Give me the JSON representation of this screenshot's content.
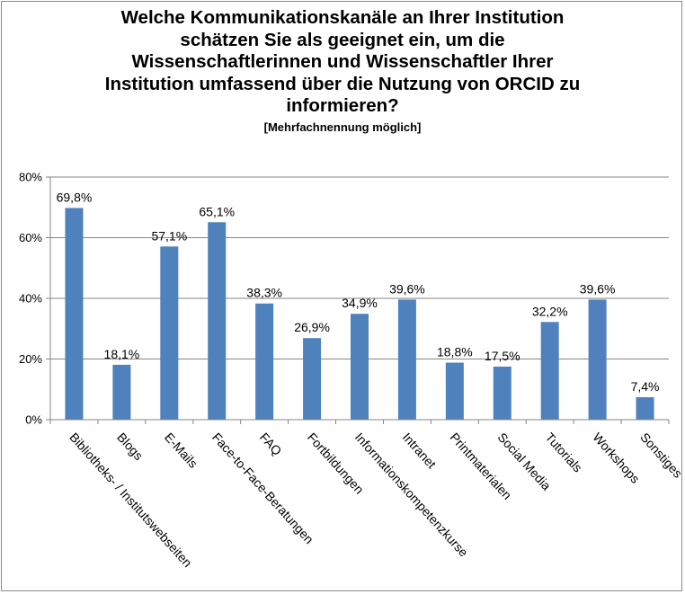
{
  "chart_data": {
    "type": "bar",
    "title_lines": [
      "Welche Kommunikationskanäle an Ihrer Institution",
      "schätzen Sie als geeignet ein, um die",
      "Wissenschaftlerinnen und Wissenschaftler Ihrer",
      "Institution umfassend über die Nutzung von ORCID zu",
      "informieren?"
    ],
    "subtitle": "[Mehrfachnennung möglich]",
    "categories": [
      "Bibliotheks- / Institutswebseiten",
      "Blogs",
      "E-Mails",
      "Face-to-Face-Beratungen",
      "FAQ",
      "Fortbildungen",
      "Informationskompetenzkurse",
      "Intranet",
      "Printmaterialen",
      "Social Media",
      "Tutorials",
      "Workshops",
      "Sonstiges"
    ],
    "values": [
      69.8,
      18.1,
      57.1,
      65.1,
      38.3,
      26.9,
      34.9,
      39.6,
      18.8,
      17.5,
      32.2,
      39.6,
      7.4
    ],
    "data_labels": [
      "69,8%",
      "18,1%",
      "57,1%",
      "65,1%",
      "38,3%",
      "26,9%",
      "34,9%",
      "39,6%",
      "18,8%",
      "17,5%",
      "32,2%",
      "39,6%",
      "7,4%"
    ],
    "y_ticks": [
      0,
      20,
      40,
      60,
      80
    ],
    "y_tick_labels": [
      "0%",
      "20%",
      "40%",
      "60%",
      "80%"
    ],
    "ylim": [
      0,
      80
    ],
    "grid": true,
    "bar_color": "#4F81BD",
    "grid_color": "#868686"
  }
}
